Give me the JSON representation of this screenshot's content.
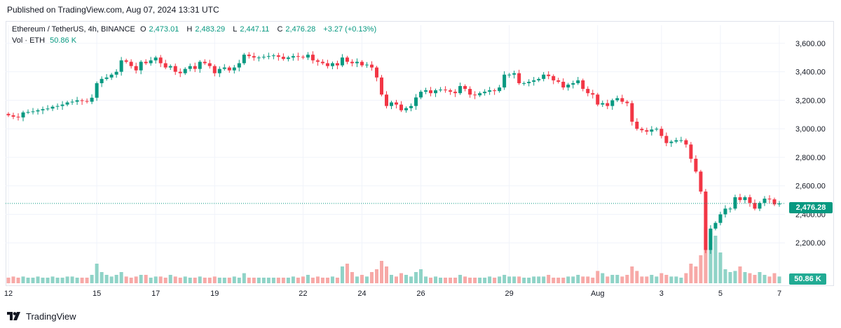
{
  "header": {
    "published": "Published on TradingView.com, Aug 07, 2024 13:31 UTC"
  },
  "legend": {
    "symbol": "Ethereum / TetherUS, 4h, BINANCE",
    "o_label": "O",
    "o_value": "2,473.01",
    "h_label": "H",
    "h_value": "2,483.29",
    "l_label": "L",
    "l_value": "2,447.11",
    "c_label": "C",
    "c_value": "2,476.28",
    "change": "+3.27 (+0.13%)",
    "vol_label": "Vol · ETH",
    "vol_value": "50.86 K"
  },
  "price_tag": "2,476.28",
  "volume_tag": "50.86 K",
  "footer": {
    "brand": "TradingView",
    "logo_icon": "tradingview-logo-icon"
  },
  "colors": {
    "up": "#089981",
    "down": "#f23645",
    "vol_up": "#8fd3c7",
    "vol_down": "#f7a9a7",
    "grid": "#f0f3fa"
  },
  "chart_data": {
    "type": "candlestick",
    "symbol": "ETHUSDT",
    "interval": "4h",
    "y_axis": {
      "min": 2000,
      "max": 3700,
      "ticks": [
        "2,200.00",
        "2,400.00",
        "2,600.00",
        "2,800.00",
        "3,000.00",
        "3,200.00",
        "3,400.00",
        "3,600.00"
      ],
      "tick_values": [
        2200,
        2400,
        2600,
        2800,
        3000,
        3200,
        3400,
        3600
      ]
    },
    "x_axis": {
      "ticks": [
        {
          "label": "12",
          "index": 0
        },
        {
          "label": "15",
          "index": 18
        },
        {
          "label": "17",
          "index": 30
        },
        {
          "label": "19",
          "index": 42
        },
        {
          "label": "22",
          "index": 60
        },
        {
          "label": "24",
          "index": 72
        },
        {
          "label": "26",
          "index": 84
        },
        {
          "label": "29",
          "index": 102
        },
        {
          "label": "Aug",
          "index": 120
        },
        {
          "label": "3",
          "index": 133
        },
        {
          "label": "5",
          "index": 145
        },
        {
          "label": "7",
          "index": 157
        }
      ]
    },
    "last_price": 2476.28,
    "close": [
      3095,
      3085,
      3080,
      3115,
      3118,
      3122,
      3130,
      3138,
      3142,
      3155,
      3160,
      3170,
      3185,
      3190,
      3200,
      3195,
      3190,
      3218,
      3320,
      3350,
      3360,
      3380,
      3400,
      3480,
      3470,
      3440,
      3410,
      3470,
      3460,
      3480,
      3500,
      3460,
      3430,
      3440,
      3400,
      3390,
      3420,
      3440,
      3420,
      3470,
      3460,
      3440,
      3390,
      3420,
      3430,
      3410,
      3430,
      3460,
      3520,
      3510,
      3500,
      3500,
      3505,
      3510,
      3515,
      3505,
      3490,
      3500,
      3510,
      3505,
      3500,
      3520,
      3480,
      3470,
      3460,
      3440,
      3460,
      3445,
      3500,
      3470,
      3460,
      3470,
      3445,
      3450,
      3430,
      3360,
      3240,
      3160,
      3185,
      3170,
      3130,
      3145,
      3160,
      3220,
      3260,
      3270,
      3250,
      3270,
      3275,
      3270,
      3260,
      3250,
      3300,
      3280,
      3240,
      3235,
      3250,
      3260,
      3270,
      3265,
      3290,
      3380,
      3380,
      3390,
      3320,
      3320,
      3330,
      3340,
      3350,
      3380,
      3370,
      3340,
      3330,
      3290,
      3310,
      3320,
      3340,
      3280,
      3250,
      3240,
      3170,
      3180,
      3160,
      3200,
      3215,
      3190,
      3180,
      3050,
      3000,
      2990,
      2980,
      2995,
      3000,
      2950,
      2900,
      2910,
      2920,
      2920,
      2890,
      2790,
      2700,
      2560,
      2150,
      2300,
      2340,
      2400,
      2440,
      2440,
      2520,
      2500,
      2520,
      2480,
      2440,
      2480,
      2510,
      2505,
      2470,
      2476
    ],
    "open_note": "each candle opens at the previous close",
    "volume_relative": [
      0.1,
      0.12,
      0.1,
      0.12,
      0.1,
      0.1,
      0.12,
      0.1,
      0.1,
      0.12,
      0.1,
      0.1,
      0.12,
      0.12,
      0.1,
      0.1,
      0.1,
      0.15,
      0.35,
      0.2,
      0.15,
      0.12,
      0.15,
      0.2,
      0.12,
      0.1,
      0.12,
      0.15,
      0.15,
      0.1,
      0.12,
      0.12,
      0.1,
      0.15,
      0.12,
      0.1,
      0.12,
      0.1,
      0.1,
      0.12,
      0.1,
      0.1,
      0.12,
      0.1,
      0.1,
      0.1,
      0.12,
      0.1,
      0.18,
      0.1,
      0.1,
      0.1,
      0.1,
      0.1,
      0.1,
      0.1,
      0.1,
      0.1,
      0.12,
      0.1,
      0.12,
      0.15,
      0.1,
      0.12,
      0.1,
      0.1,
      0.12,
      0.1,
      0.3,
      0.35,
      0.2,
      0.12,
      0.15,
      0.12,
      0.2,
      0.25,
      0.4,
      0.3,
      0.15,
      0.12,
      0.18,
      0.15,
      0.12,
      0.2,
      0.25,
      0.12,
      0.1,
      0.12,
      0.1,
      0.1,
      0.1,
      0.1,
      0.15,
      0.12,
      0.1,
      0.1,
      0.1,
      0.1,
      0.12,
      0.1,
      0.12,
      0.15,
      0.12,
      0.12,
      0.12,
      0.1,
      0.1,
      0.12,
      0.12,
      0.12,
      0.15,
      0.1,
      0.1,
      0.1,
      0.12,
      0.12,
      0.15,
      0.12,
      0.12,
      0.1,
      0.22,
      0.18,
      0.12,
      0.15,
      0.15,
      0.12,
      0.15,
      0.3,
      0.22,
      0.12,
      0.12,
      0.15,
      0.12,
      0.18,
      0.15,
      0.12,
      0.12,
      0.1,
      0.18,
      0.35,
      0.3,
      0.5,
      1.0,
      0.9,
      0.85,
      0.55,
      0.25,
      0.2,
      0.22,
      0.3,
      0.2,
      0.18,
      0.15,
      0.2,
      0.15,
      0.12,
      0.18,
      0.12
    ]
  }
}
